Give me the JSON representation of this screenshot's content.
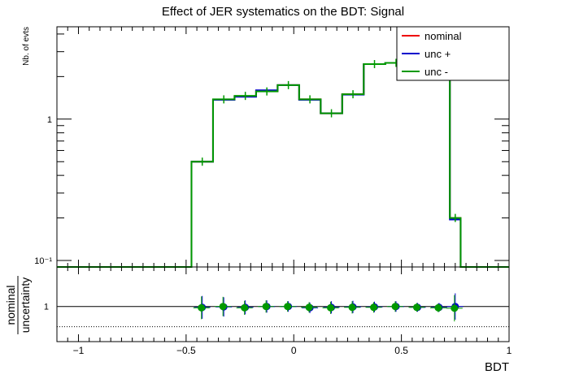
{
  "chart_data": [
    {
      "type": "step",
      "title": "Effect of JER systematics on the BDT: Signal",
      "ylabel": "Nb. of evts",
      "xlabel": "",
      "xlim": [
        -1.1,
        1.0
      ],
      "ylim": [
        0.09,
        4.5
      ],
      "yscale": "log",
      "ytick_labels": [
        "10⁻¹",
        "1"
      ],
      "ytick_values": [
        0.1,
        1
      ],
      "legend_placement": "top-right",
      "bin_edges": [
        -1.1,
        -1.0,
        -0.9,
        -0.8,
        -0.7,
        -0.6,
        -0.5,
        -0.475,
        -0.375,
        -0.275,
        -0.175,
        -0.075,
        0.025,
        0.125,
        0.225,
        0.325,
        0.425,
        0.525,
        0.625,
        0.725,
        0.775,
        0.875,
        1.0
      ],
      "series": [
        {
          "name": "nominal",
          "color": "#ee0000",
          "values": [
            0.09,
            0.09,
            0.09,
            0.09,
            0.09,
            0.09,
            0.09,
            0.5,
            1.37,
            1.45,
            1.58,
            1.74,
            1.38,
            1.1,
            1.5,
            2.45,
            2.5,
            2.5,
            2.5,
            0.2,
            0.09,
            0.09
          ]
        },
        {
          "name": "unc +",
          "color": "#0000cc",
          "values": [
            0.09,
            0.09,
            0.09,
            0.09,
            0.09,
            0.09,
            0.09,
            0.5,
            1.37,
            1.44,
            1.6,
            1.74,
            1.37,
            1.1,
            1.49,
            2.45,
            2.5,
            2.5,
            2.5,
            0.195,
            0.09,
            0.09
          ]
        },
        {
          "name": "unc -",
          "color": "#009900",
          "values": [
            0.09,
            0.09,
            0.09,
            0.09,
            0.09,
            0.09,
            0.09,
            0.5,
            1.38,
            1.46,
            1.57,
            1.74,
            1.38,
            1.1,
            1.5,
            2.45,
            2.5,
            2.5,
            2.5,
            0.2,
            0.09,
            0.09
          ]
        }
      ]
    },
    {
      "type": "scatter",
      "ylabel_top": "nominal",
      "ylabel_bottom": "uncertainty",
      "xlabel": "BDT",
      "xlim": [
        -1.1,
        1.0
      ],
      "ylim": [
        0.6,
        1.45
      ],
      "xtick_values": [
        -1,
        -0.5,
        0,
        0.5,
        1
      ],
      "xtick_labels": [
        "−1",
        "−0.5",
        "0",
        "0.5",
        "1"
      ],
      "ytick_values": [
        1
      ],
      "ytick_labels": [
        "1"
      ],
      "reference_line": 1,
      "dotted_line": 0.77,
      "x": [
        -0.425,
        -0.325,
        -0.225,
        -0.125,
        -0.025,
        0.075,
        0.175,
        0.275,
        0.375,
        0.475,
        0.575,
        0.675,
        0.75
      ],
      "series": [
        {
          "name": "unc +",
          "color": "#0000cc",
          "values": [
            0.99,
            0.995,
            0.99,
            1.0,
            1.0,
            0.985,
            0.99,
            0.995,
            0.995,
            1.0,
            0.99,
            0.99,
            1.0
          ],
          "errors": [
            0.13,
            0.11,
            0.08,
            0.07,
            0.06,
            0.06,
            0.07,
            0.07,
            0.06,
            0.06,
            0.05,
            0.05,
            0.15
          ]
        },
        {
          "name": "unc -",
          "color": "#009900",
          "values": [
            0.985,
            1.0,
            0.985,
            1.0,
            1.0,
            0.99,
            0.985,
            0.99,
            0.99,
            1.0,
            0.99,
            0.985,
            0.98
          ],
          "errors": [
            0.13,
            0.11,
            0.08,
            0.07,
            0.06,
            0.06,
            0.07,
            0.07,
            0.06,
            0.06,
            0.05,
            0.05,
            0.15
          ]
        }
      ]
    }
  ]
}
